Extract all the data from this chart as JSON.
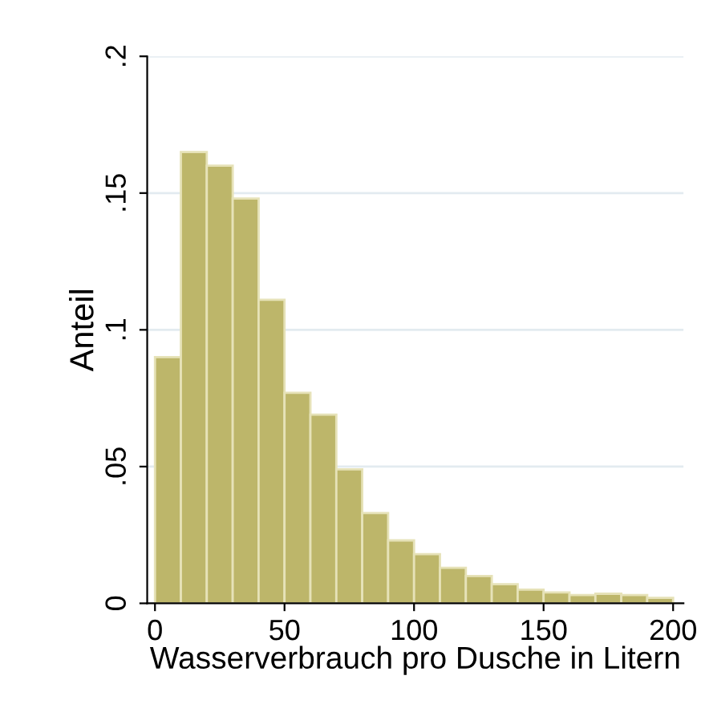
{
  "chart_data": {
    "type": "histogram",
    "xlabel": "Wasserverbrauch pro Dusche in Litern",
    "ylabel": "Anteil",
    "bins": [
      0,
      10,
      20,
      30,
      40,
      50,
      60,
      70,
      80,
      90,
      100,
      110,
      120,
      130,
      140,
      150,
      160,
      170,
      180,
      190,
      200
    ],
    "values": [
      0.09,
      0.165,
      0.16,
      0.148,
      0.111,
      0.077,
      0.069,
      0.049,
      0.033,
      0.023,
      0.018,
      0.013,
      0.01,
      0.007,
      0.005,
      0.004,
      0.003,
      0.0035,
      0.003,
      0.002
    ],
    "color": "#bdb66a",
    "xlim": [
      -3,
      204
    ],
    "xticks": [
      0,
      50,
      100,
      150,
      200
    ],
    "ylim": [
      0,
      0.2
    ],
    "yticks": [
      0,
      {
        "value": 0.05,
        "label": ".05"
      },
      {
        "value": 0.1,
        "label": ".1"
      },
      {
        "value": 0.15,
        "label": ".15"
      },
      {
        "value": 0.2,
        "label": ".2"
      }
    ],
    "grid": "y"
  }
}
